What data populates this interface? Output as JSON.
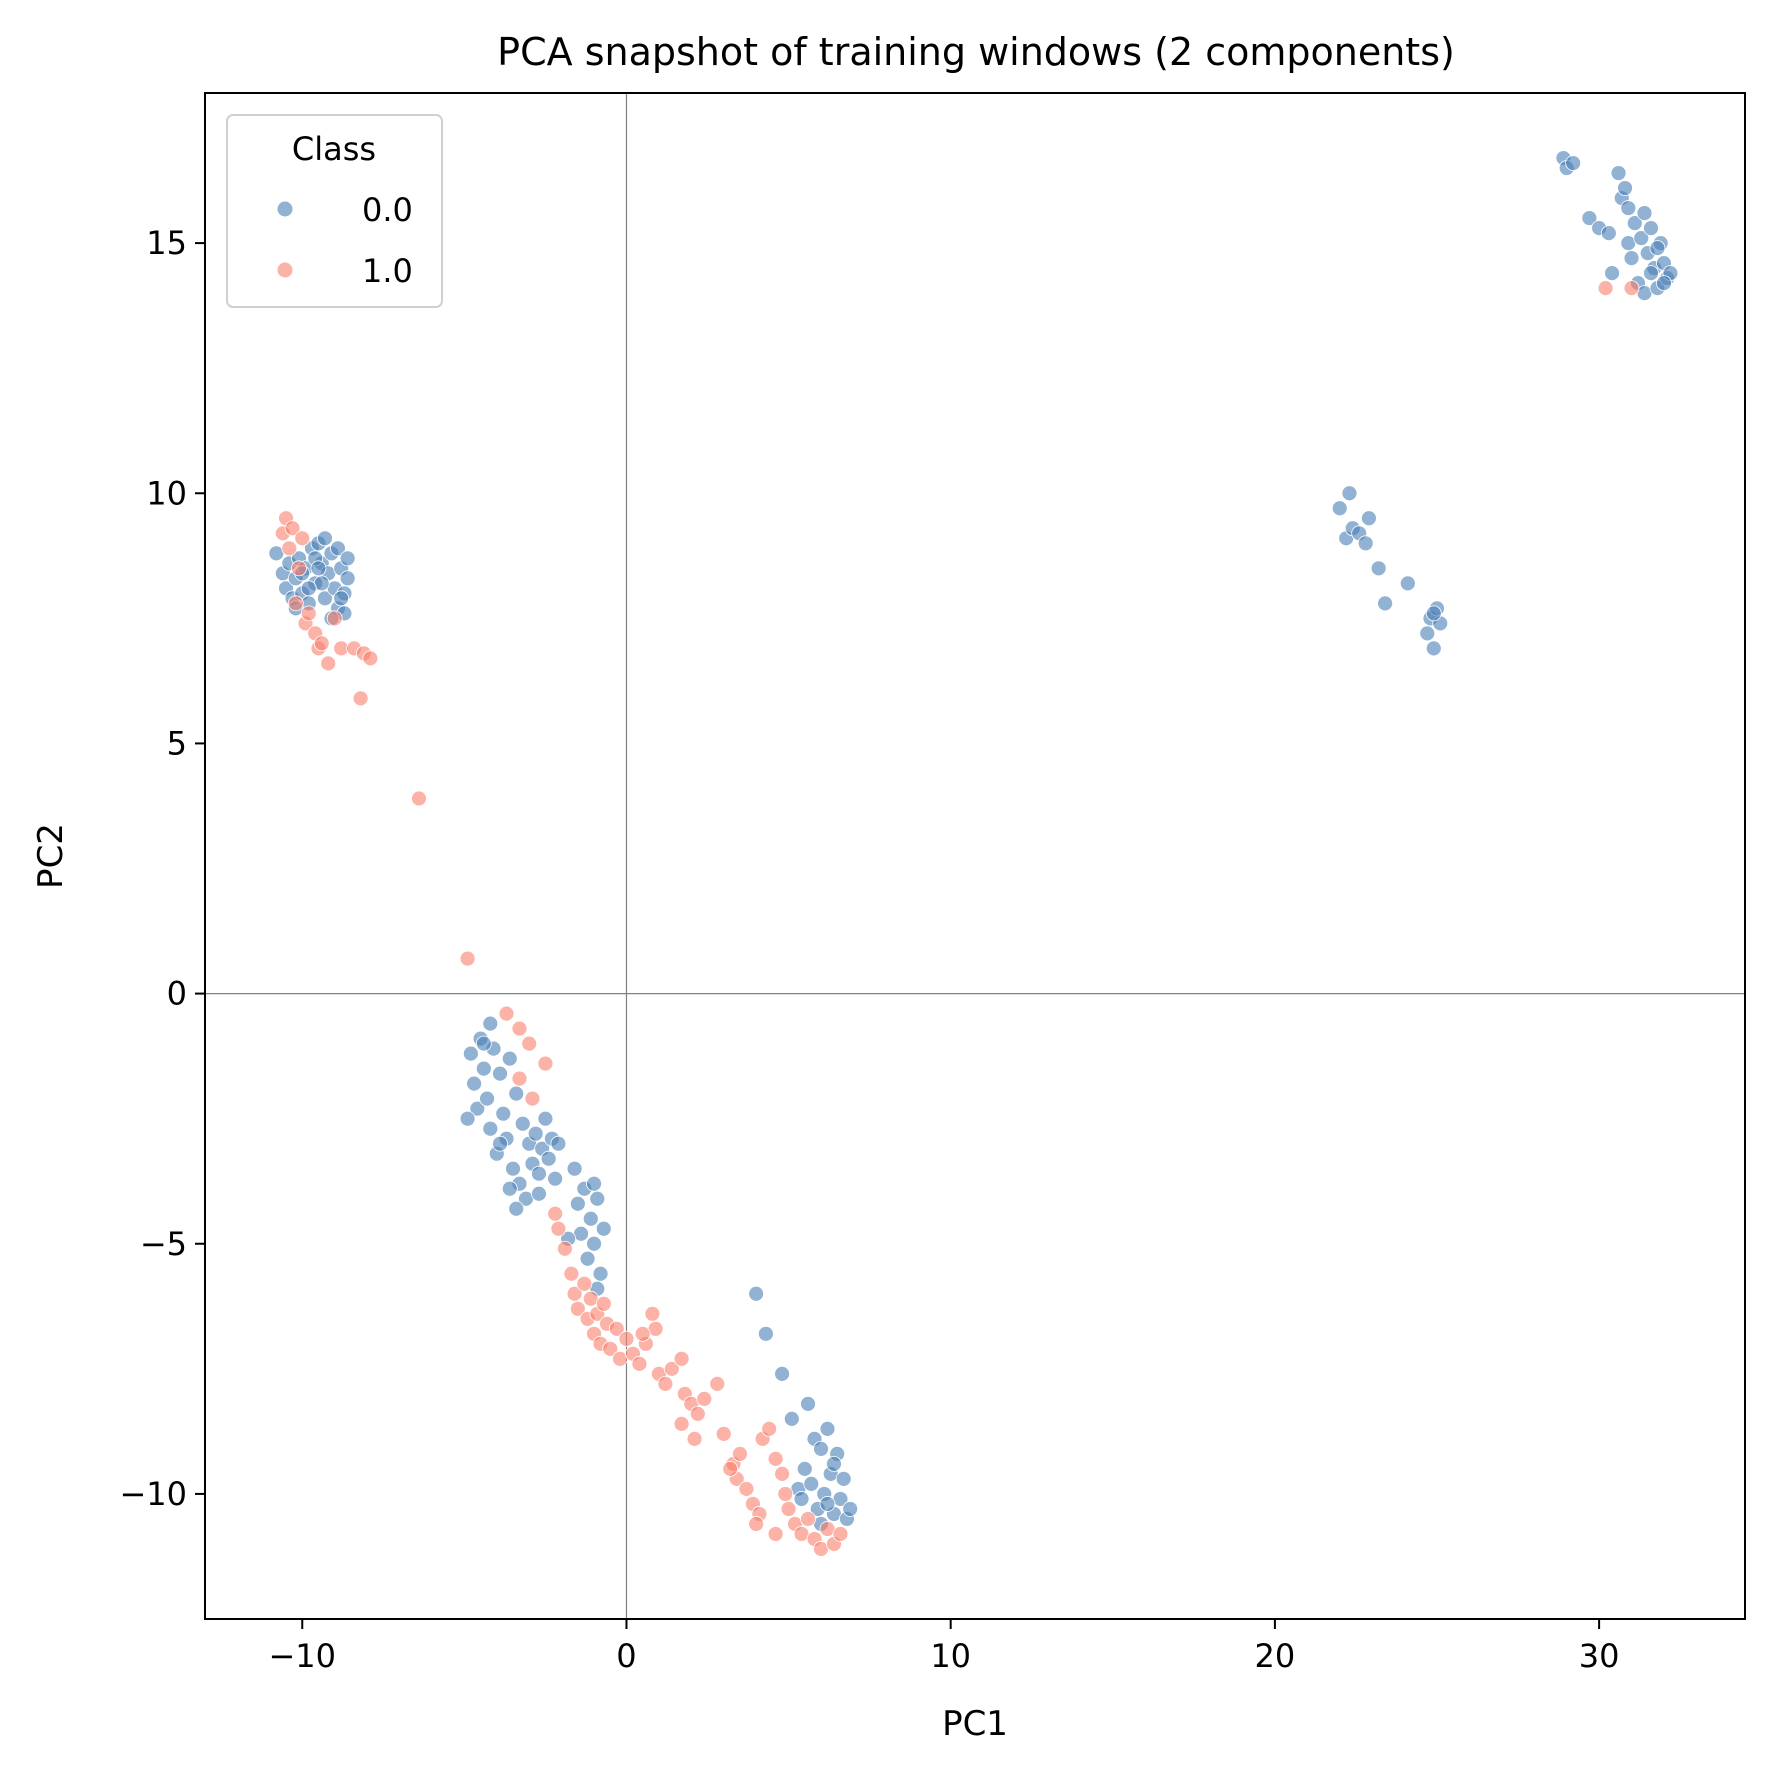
{
  "chart_data": {
    "type": "scatter",
    "title": "PCA snapshot of training windows (2 components)",
    "xlabel": "PC1",
    "ylabel": "PC2",
    "xlim": [
      -13.0,
      34.5
    ],
    "ylim": [
      -12.5,
      18.0
    ],
    "xticks": [
      -10,
      0,
      10,
      20,
      30
    ],
    "yticks": [
      -10,
      -5,
      0,
      5,
      10,
      15
    ],
    "xtick_labels": [
      "−10",
      "0",
      "10",
      "20",
      "30"
    ],
    "ytick_labels": [
      "−10",
      "−5",
      "0",
      "5",
      "10",
      "15"
    ],
    "reference_lines": {
      "x": 0,
      "y": 0
    },
    "grid": false,
    "legend": {
      "title": "Class",
      "placement": "upper-left",
      "entries": [
        "0.0",
        "1.0"
      ]
    },
    "series": [
      {
        "name": "0.0",
        "color": "#4a7fb5",
        "points": [
          [
            -10.8,
            8.8
          ],
          [
            -10.6,
            8.4
          ],
          [
            -10.5,
            8.1
          ],
          [
            -10.4,
            8.6
          ],
          [
            -10.3,
            7.9
          ],
          [
            -10.2,
            8.3
          ],
          [
            -10.1,
            8.7
          ],
          [
            -10.0,
            8.0
          ],
          [
            -9.9,
            8.5
          ],
          [
            -9.8,
            7.8
          ],
          [
            -9.7,
            8.9
          ],
          [
            -9.6,
            8.2
          ],
          [
            -9.5,
            9.0
          ],
          [
            -9.4,
            8.6
          ],
          [
            -9.3,
            7.9
          ],
          [
            -9.2,
            8.4
          ],
          [
            -9.1,
            8.8
          ],
          [
            -9.0,
            8.1
          ],
          [
            -8.9,
            7.7
          ],
          [
            -8.8,
            8.5
          ],
          [
            -8.7,
            8.0
          ],
          [
            -8.6,
            8.3
          ],
          [
            -8.9,
            8.9
          ],
          [
            -9.3,
            9.1
          ],
          [
            -9.6,
            8.7
          ],
          [
            -8.7,
            7.6
          ],
          [
            -10.0,
            8.4
          ],
          [
            -9.4,
            8.2
          ],
          [
            -9.8,
            8.1
          ],
          [
            -9.1,
            7.5
          ],
          [
            -8.8,
            7.9
          ],
          [
            -10.2,
            7.7
          ],
          [
            -9.5,
            8.5
          ],
          [
            -8.6,
            8.7
          ],
          [
            -4.8,
            -1.2
          ],
          [
            -4.7,
            -1.8
          ],
          [
            -4.6,
            -2.3
          ],
          [
            -4.5,
            -0.9
          ],
          [
            -4.4,
            -1.5
          ],
          [
            -4.3,
            -2.1
          ],
          [
            -4.2,
            -2.7
          ],
          [
            -4.1,
            -1.1
          ],
          [
            -4.0,
            -3.2
          ],
          [
            -3.9,
            -1.6
          ],
          [
            -3.8,
            -2.4
          ],
          [
            -3.7,
            -2.9
          ],
          [
            -3.6,
            -1.3
          ],
          [
            -3.5,
            -3.5
          ],
          [
            -3.4,
            -2.0
          ],
          [
            -3.3,
            -3.8
          ],
          [
            -3.2,
            -2.6
          ],
          [
            -3.1,
            -4.1
          ],
          [
            -3.0,
            -3.0
          ],
          [
            -2.9,
            -3.4
          ],
          [
            -2.8,
            -2.8
          ],
          [
            -2.7,
            -3.6
          ],
          [
            -2.6,
            -3.1
          ],
          [
            -2.5,
            -2.5
          ],
          [
            -2.4,
            -3.3
          ],
          [
            -2.3,
            -2.9
          ],
          [
            -2.2,
            -3.7
          ],
          [
            -2.1,
            -3.0
          ],
          [
            -4.9,
            -2.5
          ],
          [
            -4.2,
            -0.6
          ],
          [
            -3.9,
            -3.0
          ],
          [
            -3.4,
            -4.3
          ],
          [
            -2.7,
            -4.0
          ],
          [
            -4.4,
            -1.0
          ],
          [
            -3.6,
            -3.9
          ],
          [
            -1.6,
            -3.5
          ],
          [
            -1.5,
            -4.2
          ],
          [
            -1.4,
            -4.8
          ],
          [
            -1.3,
            -3.9
          ],
          [
            -1.2,
            -5.3
          ],
          [
            -1.1,
            -4.5
          ],
          [
            -1.0,
            -5.0
          ],
          [
            -0.9,
            -4.1
          ],
          [
            -0.8,
            -5.6
          ],
          [
            -0.7,
            -4.7
          ],
          [
            -1.8,
            -4.9
          ],
          [
            -1.0,
            -3.8
          ],
          [
            -0.9,
            -5.9
          ],
          [
            4.0,
            -6.0
          ],
          [
            4.3,
            -6.8
          ],
          [
            4.8,
            -7.6
          ],
          [
            5.1,
            -8.5
          ],
          [
            5.6,
            -8.2
          ],
          [
            5.3,
            -9.9
          ],
          [
            5.5,
            -9.5
          ],
          [
            5.8,
            -8.9
          ],
          [
            5.9,
            -10.3
          ],
          [
            6.0,
            -9.1
          ],
          [
            6.1,
            -10.0
          ],
          [
            6.2,
            -8.7
          ],
          [
            6.3,
            -9.6
          ],
          [
            6.4,
            -10.4
          ],
          [
            6.5,
            -9.2
          ],
          [
            6.6,
            -10.1
          ],
          [
            6.7,
            -9.7
          ],
          [
            6.8,
            -10.5
          ],
          [
            6.9,
            -10.3
          ],
          [
            5.7,
            -9.8
          ],
          [
            6.0,
            -10.6
          ],
          [
            6.4,
            -9.4
          ],
          [
            5.4,
            -10.1
          ],
          [
            6.2,
            -10.2
          ],
          [
            22.0,
            9.7
          ],
          [
            22.2,
            9.1
          ],
          [
            22.3,
            10.0
          ],
          [
            22.4,
            9.3
          ],
          [
            22.6,
            9.2
          ],
          [
            22.8,
            9.0
          ],
          [
            22.9,
            9.5
          ],
          [
            23.2,
            8.5
          ],
          [
            23.4,
            7.8
          ],
          [
            24.1,
            8.2
          ],
          [
            24.7,
            7.2
          ],
          [
            24.8,
            7.5
          ],
          [
            24.9,
            6.9
          ],
          [
            25.0,
            7.7
          ],
          [
            25.1,
            7.4
          ],
          [
            24.9,
            7.6
          ],
          [
            28.9,
            16.7
          ],
          [
            29.0,
            16.5
          ],
          [
            29.2,
            16.6
          ],
          [
            29.7,
            15.5
          ],
          [
            30.0,
            15.3
          ],
          [
            30.3,
            15.2
          ],
          [
            30.4,
            14.4
          ],
          [
            30.6,
            16.4
          ],
          [
            30.7,
            15.9
          ],
          [
            30.8,
            16.1
          ],
          [
            30.9,
            15.0
          ],
          [
            31.0,
            14.7
          ],
          [
            31.1,
            15.4
          ],
          [
            31.2,
            14.2
          ],
          [
            31.3,
            15.1
          ],
          [
            31.4,
            14.0
          ],
          [
            31.5,
            14.8
          ],
          [
            31.6,
            15.3
          ],
          [
            31.7,
            14.5
          ],
          [
            31.8,
            14.1
          ],
          [
            31.9,
            15.0
          ],
          [
            32.0,
            14.6
          ],
          [
            32.1,
            14.3
          ],
          [
            32.2,
            14.4
          ],
          [
            31.4,
            15.6
          ],
          [
            31.8,
            14.9
          ],
          [
            30.9,
            15.7
          ],
          [
            32.0,
            14.2
          ],
          [
            31.6,
            14.4
          ]
        ]
      },
      {
        "name": "1.0",
        "color": "#fa7f6a",
        "points": [
          [
            -10.6,
            9.2
          ],
          [
            -10.5,
            9.5
          ],
          [
            -10.4,
            8.9
          ],
          [
            -10.3,
            9.3
          ],
          [
            -10.2,
            7.8
          ],
          [
            -10.1,
            8.5
          ],
          [
            -10.0,
            9.1
          ],
          [
            -9.9,
            7.4
          ],
          [
            -9.8,
            7.6
          ],
          [
            -9.6,
            7.2
          ],
          [
            -9.5,
            6.9
          ],
          [
            -9.4,
            7.0
          ],
          [
            -9.2,
            6.6
          ],
          [
            -9.0,
            7.5
          ],
          [
            -8.8,
            6.9
          ],
          [
            -8.4,
            6.9
          ],
          [
            -8.1,
            6.8
          ],
          [
            -7.9,
            6.7
          ],
          [
            -8.2,
            5.9
          ],
          [
            -6.4,
            3.9
          ],
          [
            -4.9,
            0.7
          ],
          [
            -3.7,
            -0.4
          ],
          [
            -3.3,
            -0.7
          ],
          [
            -3.0,
            -1.0
          ],
          [
            -2.5,
            -1.4
          ],
          [
            -2.9,
            -2.1
          ],
          [
            -3.3,
            -1.7
          ],
          [
            -2.2,
            -4.4
          ],
          [
            -2.1,
            -4.7
          ],
          [
            -1.9,
            -5.1
          ],
          [
            -1.7,
            -5.6
          ],
          [
            -1.6,
            -6.0
          ],
          [
            -1.5,
            -6.3
          ],
          [
            -1.3,
            -5.8
          ],
          [
            -1.2,
            -6.5
          ],
          [
            -1.1,
            -6.1
          ],
          [
            -1.0,
            -6.8
          ],
          [
            -0.9,
            -6.4
          ],
          [
            -0.8,
            -7.0
          ],
          [
            -0.6,
            -6.6
          ],
          [
            -0.5,
            -7.1
          ],
          [
            -0.3,
            -6.7
          ],
          [
            -0.2,
            -7.3
          ],
          [
            0.0,
            -6.9
          ],
          [
            0.2,
            -7.2
          ],
          [
            0.4,
            -7.4
          ],
          [
            0.6,
            -7.0
          ],
          [
            0.8,
            -6.4
          ],
          [
            0.9,
            -6.7
          ],
          [
            1.0,
            -7.6
          ],
          [
            1.2,
            -7.8
          ],
          [
            1.4,
            -7.5
          ],
          [
            1.7,
            -7.3
          ],
          [
            1.8,
            -8.0
          ],
          [
            2.0,
            -8.2
          ],
          [
            1.7,
            -8.6
          ],
          [
            2.1,
            -8.9
          ],
          [
            2.4,
            -8.1
          ],
          [
            2.8,
            -7.8
          ],
          [
            3.0,
            -8.8
          ],
          [
            3.3,
            -9.4
          ],
          [
            3.4,
            -9.7
          ],
          [
            3.5,
            -9.2
          ],
          [
            3.7,
            -9.9
          ],
          [
            3.9,
            -10.2
          ],
          [
            4.1,
            -10.4
          ],
          [
            4.2,
            -8.9
          ],
          [
            4.4,
            -8.7
          ],
          [
            4.6,
            -9.3
          ],
          [
            4.8,
            -9.6
          ],
          [
            4.9,
            -10.0
          ],
          [
            5.0,
            -10.3
          ],
          [
            5.2,
            -10.6
          ],
          [
            5.4,
            -10.8
          ],
          [
            5.6,
            -10.5
          ],
          [
            5.8,
            -10.9
          ],
          [
            6.0,
            -11.1
          ],
          [
            6.2,
            -10.7
          ],
          [
            6.4,
            -11.0
          ],
          [
            6.6,
            -10.8
          ],
          [
            4.0,
            -10.6
          ],
          [
            4.6,
            -10.8
          ],
          [
            3.2,
            -9.5
          ],
          [
            2.2,
            -8.4
          ],
          [
            0.5,
            -6.8
          ],
          [
            -0.7,
            -6.2
          ],
          [
            30.2,
            14.1
          ],
          [
            31.0,
            14.1
          ]
        ]
      }
    ]
  }
}
